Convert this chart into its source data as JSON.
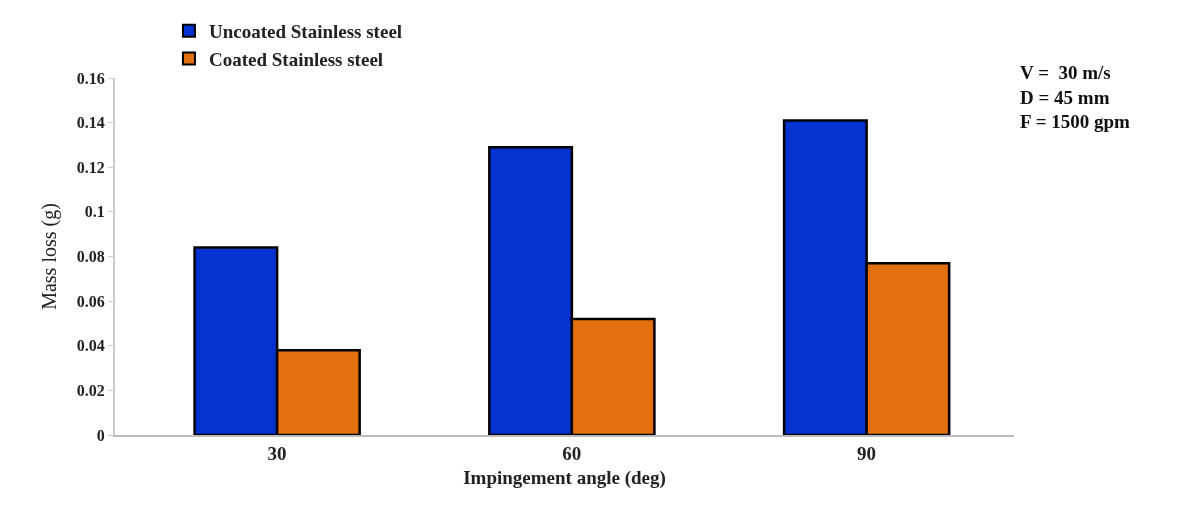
{
  "chart_data": {
    "type": "bar",
    "xlabel": "Impingement angle (deg)",
    "ylabel": "Mass loss (g)",
    "categories": [
      "30",
      "60",
      "90"
    ],
    "series": [
      {
        "name": "Uncoated Stainless steel",
        "color": "#0432d0",
        "values": [
          0.084,
          0.129,
          0.141
        ]
      },
      {
        "name": "Coated Stainless steel",
        "color": "#e2700f",
        "values": [
          0.038,
          0.052,
          0.077
        ]
      }
    ],
    "ylim": [
      0,
      0.16
    ],
    "yticks": [
      0,
      0.02,
      0.04,
      0.06,
      0.08,
      0.1,
      0.12,
      0.14,
      0.16
    ],
    "legend": "top left",
    "annotations": [
      "V =  30 m/s\nD = 45 mm\nF = 1500 gpm"
    ]
  }
}
